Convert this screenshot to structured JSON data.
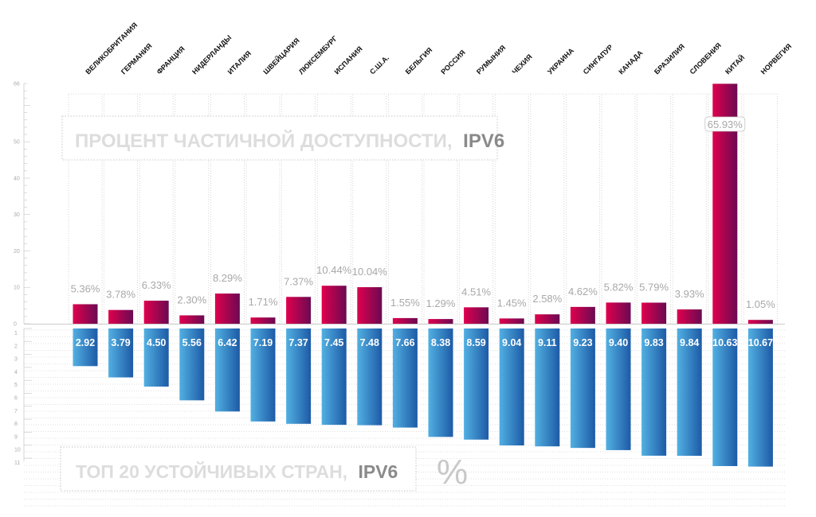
{
  "chart_data": [
    {
      "type": "bar",
      "title": "ПРОЦЕНТ ЧАСТИЧНОЙ ДОСТУПНОСТИ,",
      "title_emphasis": "IPV6",
      "categories": [
        "ВЕЛИКОБРИТАНИЯ",
        "ГЕРМАНИЯ",
        "ФРАНЦИЯ",
        "НИДЕРЛАНДЫ",
        "ИТАЛИЯ",
        "ШВЕЙЦАРИЯ",
        "ЛЮКСЕМБУРГ",
        "ИСПАНИЯ",
        "С.Ш.А.",
        "БЕЛЬГИЯ",
        "РОССИЯ",
        "РУМЫНИЯ",
        "ЧЕХИЯ",
        "УКРАИНА",
        "СИНГАПУР",
        "КАНАДА",
        "БРАЗИЛИЯ",
        "СЛОВЕНИЯ",
        "КИТАЙ",
        "НОРВЕГИЯ"
      ],
      "values": [
        5.36,
        3.78,
        6.33,
        2.3,
        8.29,
        1.71,
        7.37,
        10.44,
        10.04,
        1.55,
        1.29,
        4.51,
        1.45,
        2.58,
        4.62,
        5.82,
        5.79,
        3.93,
        65.93,
        1.05
      ],
      "labels": [
        "5.36%",
        "3.78%",
        "6.33%",
        "2.30%",
        "8.29%",
        "1.71%",
        "7.37%",
        "10.44%",
        "10.04%",
        "1.55%",
        "1.29%",
        "4.51%",
        "1.45%",
        "2.58%",
        "4.62%",
        "5.82%",
        "5.79%",
        "3.93%",
        "65.93%",
        "1.05%"
      ],
      "yticks": [
        "0",
        "10",
        "20",
        "30",
        "40",
        "50",
        "66"
      ],
      "ylim": [
        0,
        66
      ],
      "color_top": "#e0004d",
      "color_bottom": "#6a0a52"
    },
    {
      "type": "bar",
      "title": "ТОП 20 УСТОЙЧИВЫХ СТРАН,",
      "title_emphasis": "IPV6",
      "unit_symbol": "%",
      "categories": [
        "ВЕЛИКОБРИТАНИЯ",
        "ГЕРМАНИЯ",
        "ФРАНЦИЯ",
        "НИДЕРЛАНДЫ",
        "ИТАЛИЯ",
        "ШВЕЙЦАРИЯ",
        "ЛЮКСЕМБУРГ",
        "ИСПАНИЯ",
        "С.Ш.А.",
        "БЕЛЬГИЯ",
        "РОССИЯ",
        "РУМЫНИЯ",
        "ЧЕХИЯ",
        "УКРАИНА",
        "СИНГАПУР",
        "КАНАДА",
        "БРАЗИЛИЯ",
        "СЛОВЕНИЯ",
        "КИТАЙ",
        "НОРВЕГИЯ"
      ],
      "values": [
        2.92,
        3.79,
        4.5,
        5.56,
        6.42,
        7.19,
        7.37,
        7.45,
        7.48,
        7.66,
        8.38,
        8.59,
        9.04,
        9.11,
        9.23,
        9.4,
        9.83,
        9.84,
        10.63,
        10.67
      ],
      "labels": [
        "2.92",
        "3.79",
        "4.50",
        "5.56",
        "6.42",
        "7.19",
        "7.37",
        "7.45",
        "7.48",
        "7.66",
        "8.38",
        "8.59",
        "9.04",
        "9.11",
        "9.23",
        "9.40",
        "9.83",
        "9.84",
        "10.63",
        "10.67"
      ],
      "yticks": [
        "1",
        "2",
        "3",
        "4",
        "5",
        "6",
        "7",
        "8",
        "9",
        "10",
        "11"
      ],
      "ylim": [
        1,
        11
      ],
      "color_left": "#52b0e2",
      "color_right": "#1d5aa6"
    }
  ]
}
